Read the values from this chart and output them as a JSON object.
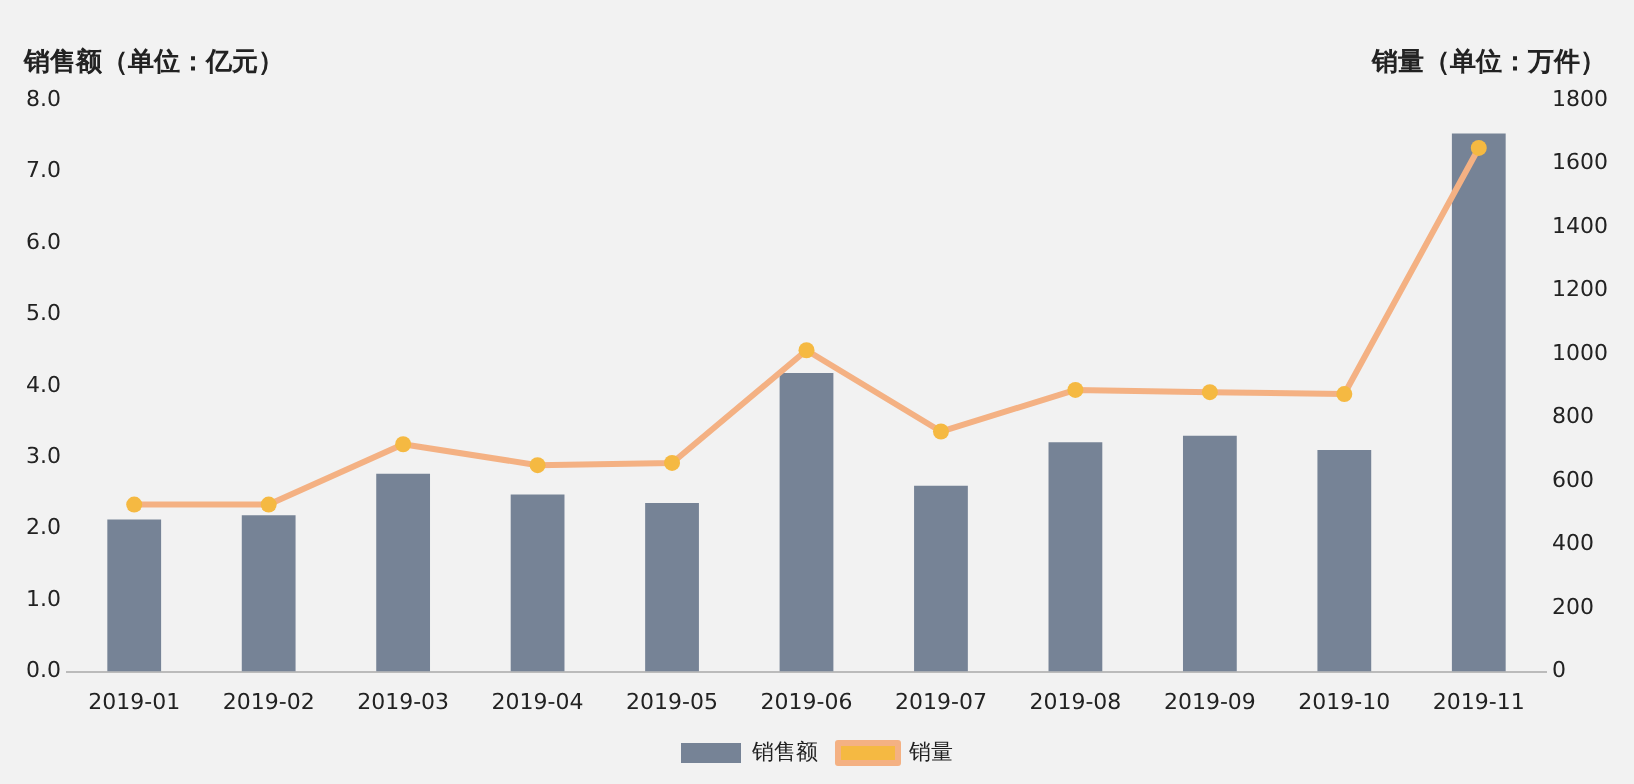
{
  "chart_data": {
    "type": "bar",
    "ylabel": "销售额（单位：亿元）",
    "y2label": "销量（单位：万件）",
    "categories": [
      "2019-01",
      "2019-02",
      "2019-03",
      "2019-04",
      "2019-05",
      "2019-06",
      "2019-07",
      "2019-08",
      "2019-09",
      "2019-10",
      "2019-11"
    ],
    "series": [
      {
        "name": "销售额",
        "color": "#768396",
        "values": [
          2.13,
          2.19,
          2.77,
          2.48,
          2.36,
          4.18,
          2.6,
          3.21,
          3.3,
          3.1,
          7.53
        ]
      },
      {
        "name": "销量",
        "type": "line",
        "axis": "y2",
        "color": "#f4b183",
        "marker": "circle",
        "values": [
          526,
          526,
          716,
          650,
          657,
          1012,
          756,
          887,
          880,
          874,
          1649
        ]
      }
    ],
    "ylim": [
      0,
      8
    ],
    "yticks": [
      {
        "value": 0,
        "label": "0.0"
      },
      {
        "value": 1,
        "label": "1.0"
      },
      {
        "value": 2,
        "label": "2.0"
      },
      {
        "value": 3,
        "label": "3.0"
      },
      {
        "value": 4,
        "label": "4.0"
      },
      {
        "value": 5,
        "label": "5.0"
      },
      {
        "value": 6,
        "label": "6.0"
      },
      {
        "value": 7,
        "label": "7.0"
      },
      {
        "value": 8,
        "label": "8.0"
      }
    ],
    "y2lim": [
      0,
      1800
    ],
    "y2ticks": [
      0,
      200,
      400,
      600,
      800,
      1000,
      1200,
      1400,
      1600,
      1800
    ],
    "grid": false,
    "legend": "bottom"
  }
}
